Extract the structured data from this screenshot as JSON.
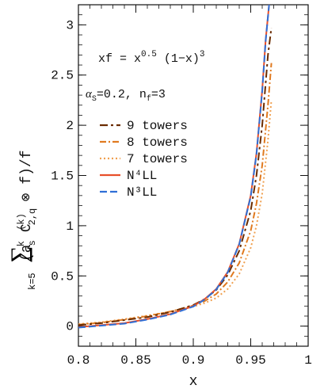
{
  "chart_data": {
    "type": "line",
    "xlabel": "x",
    "ylabel": {
      "sum_sub": "k=5",
      "sum_sign": "∑",
      "open_paren": "(a",
      "a_sup": "k",
      "a_sub": "s",
      "c": " C",
      "c_sup": "(k)",
      "c_sub": "2,q",
      "conv": " ⊗ f)/f"
    },
    "xlim": [
      0.8,
      1.0
    ],
    "ylim": [
      -0.2,
      3.2
    ],
    "x_ticks": [
      "0.8",
      "0.85",
      "0.9",
      "0.95",
      "1"
    ],
    "y_ticks": [
      "0",
      "0.5",
      "1",
      "1.5",
      "2",
      "2.5",
      "3"
    ],
    "annotations": {
      "formula_lhs": "xf = x",
      "formula_exp": "0.5",
      "formula_mid": " (1−x)",
      "formula_exp2": "3",
      "alpha_symbol": "α",
      "alpha_sub": "S",
      "alpha_value": "=0.2, n",
      "nf_sub": "f",
      "nf_value": "=3"
    },
    "legend_position": "left-center",
    "series": [
      {
        "name": "9 towers",
        "color": "#6b2c00",
        "dash": "10,4,3,4",
        "x": [
          0.8,
          0.82,
          0.84,
          0.86,
          0.88,
          0.9,
          0.91,
          0.92,
          0.93,
          0.94,
          0.95,
          0.955,
          0.96,
          0.965,
          0.968
        ],
        "y": [
          0.01,
          0.03,
          0.06,
          0.09,
          0.14,
          0.21,
          0.27,
          0.36,
          0.51,
          0.75,
          1.15,
          1.5,
          2.0,
          2.7,
          2.97
        ]
      },
      {
        "name": "8 towers",
        "color": "#e07a20",
        "dash": "8,3,2,3",
        "x": [
          0.8,
          0.82,
          0.84,
          0.86,
          0.88,
          0.9,
          0.91,
          0.92,
          0.93,
          0.94,
          0.95,
          0.955,
          0.96,
          0.965,
          0.968
        ],
        "y": [
          0.015,
          0.035,
          0.065,
          0.1,
          0.145,
          0.205,
          0.25,
          0.32,
          0.44,
          0.63,
          0.95,
          1.22,
          1.6,
          2.2,
          2.62
        ]
      },
      {
        "name": "7 towers",
        "color": "#f0a050",
        "dash": "2,3",
        "x": [
          0.8,
          0.82,
          0.84,
          0.86,
          0.88,
          0.9,
          0.91,
          0.92,
          0.93,
          0.94,
          0.95,
          0.955,
          0.96,
          0.965,
          0.968
        ],
        "y": [
          0.02,
          0.04,
          0.07,
          0.105,
          0.145,
          0.195,
          0.23,
          0.28,
          0.37,
          0.52,
          0.78,
          1.0,
          1.32,
          1.85,
          2.25
        ]
      },
      {
        "name": "N⁴LL",
        "color": "#e8502a",
        "dash": "",
        "x": [
          0.8,
          0.82,
          0.84,
          0.86,
          0.88,
          0.9,
          0.91,
          0.92,
          0.93,
          0.94,
          0.95,
          0.955,
          0.96,
          0.963,
          0.966
        ],
        "y": [
          -0.01,
          0.01,
          0.03,
          0.07,
          0.12,
          0.2,
          0.27,
          0.37,
          0.54,
          0.82,
          1.3,
          1.72,
          2.35,
          2.85,
          3.2
        ]
      },
      {
        "name": "N³LL",
        "color": "#2f6fd6",
        "dash": "9,4",
        "x": [
          0.8,
          0.82,
          0.84,
          0.86,
          0.88,
          0.9,
          0.91,
          0.92,
          0.93,
          0.94,
          0.95,
          0.955,
          0.96,
          0.963,
          0.966
        ],
        "y": [
          -0.015,
          0.005,
          0.025,
          0.065,
          0.115,
          0.195,
          0.265,
          0.365,
          0.535,
          0.815,
          1.29,
          1.71,
          2.34,
          2.84,
          3.2
        ]
      }
    ]
  }
}
